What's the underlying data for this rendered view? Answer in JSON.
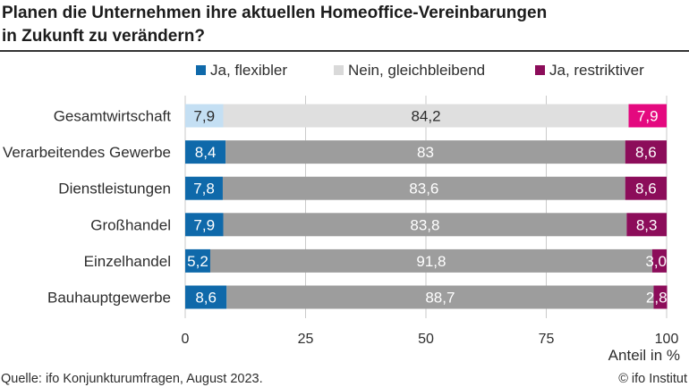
{
  "chart_data": {
    "type": "bar",
    "orientation": "horizontal",
    "stacked": true,
    "title": "Planen die Unternehmen ihre aktuellen Homeoffice-Vereinbarungen\nin Zukunft zu verändern?",
    "xlabel": "Anteil in %",
    "xlim": [
      0,
      100
    ],
    "xticks": [
      0,
      25,
      50,
      75,
      100
    ],
    "grid": "vertical",
    "legend": "top",
    "categories": [
      "Gesamtwirtschaft",
      "Verarbeitendes Gewerbe",
      "Dienstleistungen",
      "Großhandel",
      "Einzelhandel",
      "Bauhauptgewerbe"
    ],
    "highlight_index": 0,
    "series": [
      {
        "name": "Ja, flexibler",
        "values": [
          7.9,
          8.4,
          7.8,
          7.9,
          5.2,
          8.6
        ],
        "labels": [
          "7,9",
          "8,4",
          "7,8",
          "7,9",
          "5,2",
          "8,6"
        ],
        "color": "#0f69aa",
        "highlight_color": "#c4dff3",
        "legend_color": "#0f69aa"
      },
      {
        "name": "Nein, gleichbleibend",
        "values": [
          84.2,
          83,
          83.6,
          83.8,
          91.8,
          88.7
        ],
        "labels": [
          "84,2",
          "83",
          "83,6",
          "83,8",
          "91,8",
          "88,7"
        ],
        "color": "#9d9d9d",
        "highlight_color": "#dfdfdf",
        "legend_color": "#d9d9d9"
      },
      {
        "name": "Ja, restriktiver",
        "values": [
          7.9,
          8.6,
          8.6,
          8.3,
          3.0,
          2.8
        ],
        "labels": [
          "7,9",
          "8,6",
          "8,6",
          "8,3",
          "3,0",
          "2,8"
        ],
        "color": "#8c0d5a",
        "highlight_color": "#e4097f",
        "legend_color": "#8c0d5a"
      }
    ]
  },
  "footer": {
    "source": "Quelle: ifo Konjunkturumfragen, August 2023.",
    "copyright": "© ifo Institut"
  }
}
